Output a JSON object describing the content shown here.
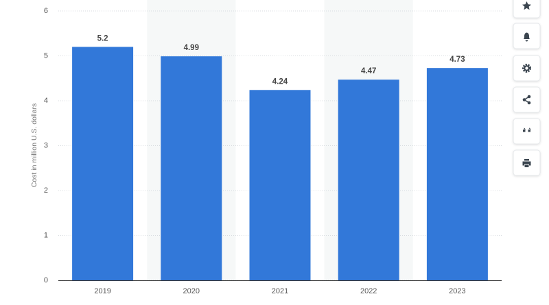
{
  "chart_data": {
    "type": "bar",
    "y_label": "Cost in million U.S. dollars",
    "categories": [
      "2019",
      "2020",
      "2021",
      "2022",
      "2023"
    ],
    "values": [
      5.2,
      4.99,
      4.24,
      4.47,
      4.73
    ],
    "color": "#3278d9",
    "ylim": [
      0,
      6
    ],
    "yticks": [
      0,
      1,
      2,
      3,
      4,
      5,
      6
    ],
    "grid": true
  }
}
